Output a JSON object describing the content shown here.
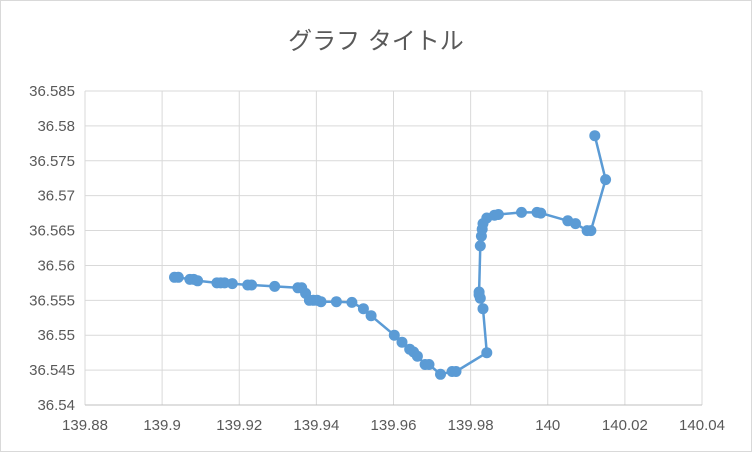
{
  "chart_data": {
    "type": "scatter",
    "title": "グラフ タイトル",
    "xlabel": "",
    "ylabel": "",
    "xlim": [
      139.88,
      140.04
    ],
    "ylim": [
      36.54,
      36.585
    ],
    "x_ticks": [
      "139.88",
      "139.9",
      "139.92",
      "139.94",
      "139.96",
      "139.98",
      "140",
      "140.02",
      "140.04"
    ],
    "y_ticks": [
      "36.585",
      "36.58",
      "36.575",
      "36.57",
      "36.565",
      "36.56",
      "36.555",
      "36.55",
      "36.545",
      "36.54"
    ],
    "grid": true,
    "legend": "none",
    "color": "#5b9bd5",
    "series": [
      {
        "lines": true,
        "points": [
          [
            139.9032,
            36.5583
          ],
          [
            139.9042,
            36.5583
          ],
          [
            139.9072,
            36.558
          ],
          [
            139.9082,
            36.558
          ],
          [
            139.9092,
            36.5578
          ],
          [
            139.9142,
            36.5575
          ],
          [
            139.9152,
            36.5575
          ],
          [
            139.9162,
            36.5575
          ],
          [
            139.9182,
            36.5574
          ],
          [
            139.9222,
            36.5572
          ],
          [
            139.9232,
            36.5572
          ],
          [
            139.9292,
            36.557
          ],
          [
            139.9352,
            36.5568
          ],
          [
            139.9362,
            36.5568
          ],
          [
            139.9372,
            36.556
          ],
          [
            139.9382,
            36.555
          ],
          [
            139.9392,
            36.555
          ],
          [
            139.9402,
            36.555
          ],
          [
            139.9412,
            36.5548
          ],
          [
            139.9452,
            36.5548
          ],
          [
            139.9492,
            36.5547
          ],
          [
            139.9522,
            36.5538
          ],
          [
            139.9542,
            36.5528
          ],
          [
            139.9602,
            36.55
          ],
          [
            139.9622,
            36.549
          ],
          [
            139.9642,
            36.548
          ],
          [
            139.9652,
            36.5476
          ],
          [
            139.9662,
            36.547
          ],
          [
            139.9682,
            36.5458
          ],
          [
            139.9692,
            36.5458
          ],
          [
            139.9722,
            36.5444
          ],
          [
            139.9752,
            36.5448
          ],
          [
            139.9762,
            36.5448
          ],
          [
            139.9842,
            36.5475
          ],
          [
            139.9832,
            36.5538
          ],
          [
            139.9825,
            36.5553
          ],
          [
            139.9822,
            36.5558
          ],
          [
            139.9822,
            36.5562
          ],
          [
            139.9825,
            36.5628
          ],
          [
            139.9828,
            36.5642
          ],
          [
            139.983,
            36.5652
          ],
          [
            139.9832,
            36.566
          ],
          [
            139.9842,
            36.5668
          ],
          [
            139.9862,
            36.5672
          ],
          [
            139.9872,
            36.5673
          ],
          [
            139.9932,
            36.5676
          ],
          [
            139.9972,
            36.5676
          ],
          [
            139.9982,
            36.5675
          ],
          [
            140.0052,
            36.5664
          ],
          [
            140.0072,
            36.566
          ],
          [
            140.0102,
            36.565
          ],
          [
            140.0112,
            36.565
          ],
          [
            140.015,
            36.5723
          ],
          [
            140.0122,
            36.5786
          ]
        ]
      }
    ]
  }
}
